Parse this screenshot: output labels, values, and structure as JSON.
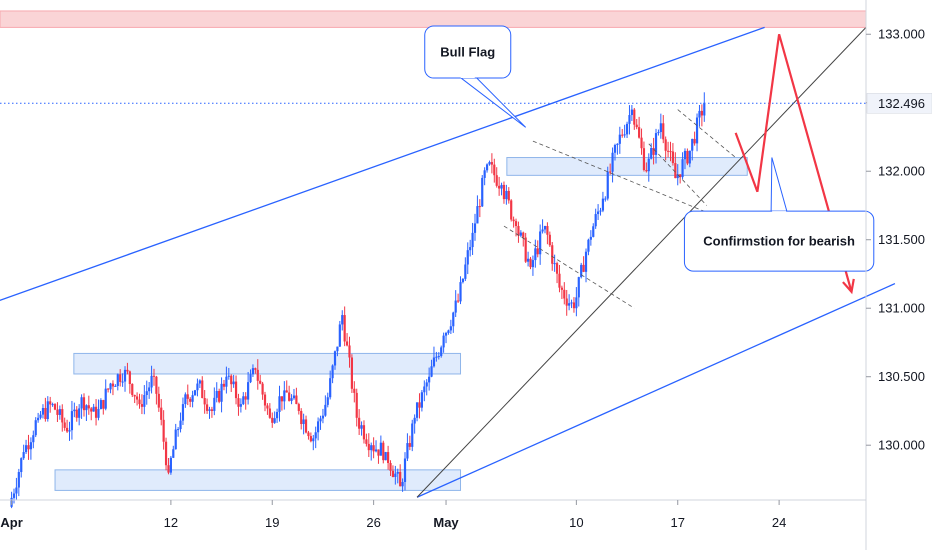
{
  "chart_data": {
    "type": "candlestick",
    "instrument_note": "",
    "ylim": [
      129.6,
      133.25
    ],
    "yticks": [
      "133.000",
      "132.500",
      "132.000",
      "131.500",
      "131.000",
      "130.500",
      "130.000"
    ],
    "ytick_values": [
      133.0,
      132.5,
      132.0,
      131.5,
      131.0,
      130.5,
      130.0
    ],
    "xticks": [
      "Apr",
      "12",
      "19",
      "26",
      "May",
      "10",
      "17",
      "24"
    ],
    "xtick_days": [
      0,
      11,
      18,
      25,
      30,
      39,
      46,
      53
    ],
    "xlim_days": [
      -0.8,
      59
    ],
    "last_price": 132.496,
    "last_price_label": "132.496",
    "colors": {
      "up": "#2962ff",
      "down": "#f23645",
      "zone_fill": "#dbe8fb",
      "zone_stroke": "#8fb5ea",
      "resistance_fill": "#fad4d6",
      "resistance_stroke": "#f7a8ae",
      "channel": "#2962ff",
      "projection": "#f23645",
      "trendline": "#444444",
      "price_line": "#2962ff"
    },
    "series_anchors": [
      [
        0,
        129.55,
        129.95
      ],
      [
        1,
        129.95,
        130.2
      ],
      [
        2,
        130.2,
        130.3
      ],
      [
        3,
        130.3,
        130.1
      ],
      [
        4,
        130.1,
        130.35
      ],
      [
        5,
        130.35,
        130.2
      ],
      [
        6,
        130.2,
        130.45
      ],
      [
        7,
        130.45,
        130.55
      ],
      [
        8,
        130.55,
        130.3
      ],
      [
        9,
        130.3,
        130.5
      ],
      [
        10,
        130.5,
        129.8
      ],
      [
        11,
        129.8,
        130.3
      ],
      [
        12,
        130.3,
        130.45
      ],
      [
        13,
        130.45,
        130.25
      ],
      [
        14,
        130.25,
        130.5
      ],
      [
        15,
        130.5,
        130.3
      ],
      [
        16,
        130.3,
        130.55
      ],
      [
        17,
        130.55,
        130.2
      ],
      [
        18,
        130.2,
        130.4
      ],
      [
        19,
        130.4,
        130.25
      ],
      [
        20,
        130.25,
        130.05
      ],
      [
        21,
        130.05,
        130.35
      ],
      [
        22,
        130.35,
        130.95
      ],
      [
        23,
        130.95,
        130.2
      ],
      [
        24,
        130.2,
        130.0
      ],
      [
        25,
        130.0,
        129.95
      ],
      [
        26,
        129.95,
        129.7
      ],
      [
        27,
        129.7,
        130.2
      ],
      [
        28,
        130.2,
        130.5
      ],
      [
        29,
        130.5,
        130.8
      ],
      [
        30,
        130.8,
        131.05
      ],
      [
        31,
        131.05,
        131.55
      ],
      [
        32,
        131.55,
        132.05
      ],
      [
        33,
        132.05,
        131.9
      ],
      [
        34,
        131.9,
        131.6
      ],
      [
        35,
        131.6,
        131.3
      ],
      [
        36,
        131.3,
        131.6
      ],
      [
        37,
        131.6,
        131.15
      ],
      [
        38,
        131.15,
        131.0
      ],
      [
        39,
        131.0,
        131.5
      ],
      [
        40,
        131.5,
        131.8
      ],
      [
        41,
        131.8,
        132.2
      ],
      [
        42,
        132.2,
        132.45
      ],
      [
        43,
        132.45,
        132.0
      ],
      [
        44,
        132.0,
        132.35
      ],
      [
        45,
        132.35,
        131.95
      ],
      [
        46,
        131.95,
        132.15
      ],
      [
        47,
        132.15,
        132.5
      ]
    ],
    "zones": [
      {
        "d0": 3,
        "d1": 31,
        "lo": 129.67,
        "hi": 129.82
      },
      {
        "d0": 4.3,
        "d1": 31,
        "lo": 130.52,
        "hi": 130.67
      },
      {
        "d0": 34.2,
        "d1": 50.8,
        "lo": 131.97,
        "hi": 132.1
      }
    ],
    "resistance_zone": {
      "lo": 133.05,
      "hi": 133.17
    },
    "channel_upper": [
      [
        -1,
        131.05
      ],
      [
        52,
        133.05
      ]
    ],
    "channel_lower": [
      [
        28,
        129.62
      ],
      [
        61,
        131.18
      ]
    ],
    "trendline": [
      [
        28,
        129.62
      ],
      [
        59,
        133.05
      ]
    ],
    "flag_upper": [
      [
        36,
        132.22
      ],
      [
        48,
        131.7
      ]
    ],
    "flag_lower": [
      [
        34,
        131.6
      ],
      [
        43,
        131.0
      ]
    ],
    "flag2_upper": [
      [
        46,
        132.45
      ],
      [
        50,
        132.1
      ]
    ],
    "flag2_lower": [
      [
        44,
        132.2
      ],
      [
        48,
        131.75
      ]
    ],
    "projection": [
      [
        50,
        132.28
      ],
      [
        51.5,
        131.85
      ],
      [
        53,
        133.0
      ],
      [
        58,
        131.12
      ]
    ],
    "annotations": [
      {
        "text": "Bull Flag",
        "name": "bull-flag-callout",
        "d": 31.5,
        "y": 132.87,
        "pd": 35.5,
        "py": 132.32
      },
      {
        "text": "Confirmstion for bearish",
        "name": "bearish-confirmation-callout",
        "d": 53,
        "y": 131.49,
        "pd": 52.5,
        "py": 132.1
      }
    ]
  }
}
